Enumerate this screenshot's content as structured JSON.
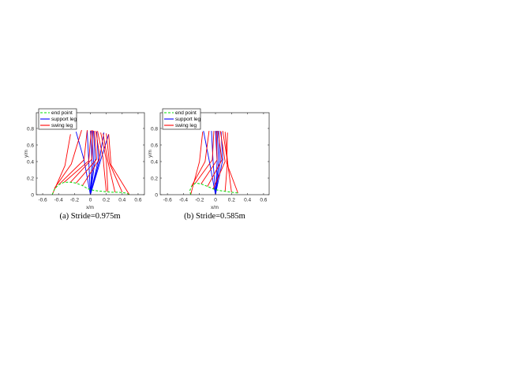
{
  "chart_data": [
    {
      "type": "line",
      "title": "",
      "caption": "(a) Stride=0.975m",
      "xlabel": "x/m",
      "ylabel": "y/m",
      "xlim": [
        -0.68,
        0.68
      ],
      "ylim": [
        0,
        0.99
      ],
      "xticks": [
        "-0.6",
        "-0.4",
        "-0.2",
        "0",
        "0.2",
        "0.4",
        "0.6"
      ],
      "xtick_values": [
        -0.6,
        -0.4,
        -0.2,
        0,
        0.2,
        0.4,
        0.6
      ],
      "yticks": [
        "0",
        "0.2",
        "0.4",
        "0.6",
        "0.8"
      ],
      "ytick_values": [
        0,
        0.2,
        0.4,
        0.6,
        0.8
      ],
      "grid": false,
      "legend_position": "upper-left",
      "legend": [
        {
          "label": "end point",
          "color": "#00dd00",
          "style": "dashed"
        },
        {
          "label": "support leg",
          "color": "#0000ff",
          "style": "solid"
        },
        {
          "label": "swing leg",
          "color": "#ff0000",
          "style": "solid"
        }
      ],
      "series": [
        {
          "name": "end point",
          "color": "#00dd00",
          "style": "dashed",
          "points": [
            [
              -0.48,
              0.0
            ],
            [
              -0.45,
              0.07
            ],
            [
              -0.4,
              0.12
            ],
            [
              -0.33,
              0.15
            ],
            [
              -0.25,
              0.15
            ],
            [
              -0.18,
              0.14
            ],
            [
              -0.1,
              0.11
            ],
            [
              -0.03,
              0.07
            ],
            [
              0.05,
              0.05
            ],
            [
              0.15,
              0.04
            ],
            [
              0.25,
              0.03
            ],
            [
              0.35,
              0.03
            ],
            [
              0.45,
              0.02
            ],
            [
              0.49,
              0.0
            ]
          ]
        },
        {
          "name": "support leg",
          "color": "#0000ff",
          "style": "solid",
          "legs": [
            [
              [
                -0.18,
                0.76
              ],
              [
                -0.08,
                0.42
              ],
              [
                0.0,
                0.0
              ]
            ],
            [
              [
                -0.04,
                0.77
              ],
              [
                -0.02,
                0.4
              ],
              [
                0.0,
                0.0
              ]
            ],
            [
              [
                0.0,
                0.77
              ],
              [
                0.02,
                0.4
              ],
              [
                0.0,
                0.0
              ]
            ],
            [
              [
                0.02,
                0.77
              ],
              [
                0.04,
                0.4
              ],
              [
                0.0,
                0.0
              ]
            ],
            [
              [
                0.04,
                0.77
              ],
              [
                0.06,
                0.42
              ],
              [
                0.0,
                0.0
              ]
            ],
            [
              [
                0.08,
                0.76
              ],
              [
                0.1,
                0.42
              ],
              [
                0.0,
                0.0
              ]
            ],
            [
              [
                0.17,
                0.75
              ],
              [
                0.11,
                0.4
              ],
              [
                0.0,
                0.0
              ]
            ],
            [
              [
                0.23,
                0.73
              ],
              [
                0.14,
                0.45
              ],
              [
                0.0,
                0.0
              ]
            ]
          ]
        },
        {
          "name": "swing leg",
          "color": "#ff0000",
          "style": "solid",
          "legs": [
            [
              [
                -0.25,
                0.73
              ],
              [
                -0.32,
                0.35
              ],
              [
                -0.48,
                0.0
              ]
            ],
            [
              [
                -0.11,
                0.78
              ],
              [
                -0.24,
                0.37
              ],
              [
                -0.45,
                0.08
              ]
            ],
            [
              [
                -0.04,
                0.78
              ],
              [
                -0.08,
                0.42
              ],
              [
                -0.4,
                0.12
              ]
            ],
            [
              [
                0.01,
                0.78
              ],
              [
                -0.02,
                0.41
              ],
              [
                -0.33,
                0.15
              ]
            ],
            [
              [
                0.03,
                0.78
              ],
              [
                0.02,
                0.43
              ],
              [
                -0.25,
                0.15
              ]
            ],
            [
              [
                0.05,
                0.77
              ],
              [
                0.08,
                0.43
              ],
              [
                -0.18,
                0.14
              ]
            ],
            [
              [
                0.07,
                0.77
              ],
              [
                0.12,
                0.44
              ],
              [
                -0.1,
                0.11
              ]
            ],
            [
              [
                0.09,
                0.77
              ],
              [
                0.16,
                0.44
              ],
              [
                0.2,
                0.04
              ]
            ],
            [
              [
                0.13,
                0.75
              ],
              [
                0.2,
                0.42
              ],
              [
                0.22,
                0.04
              ]
            ],
            [
              [
                0.16,
                0.74
              ],
              [
                0.22,
                0.4
              ],
              [
                0.31,
                0.03
              ]
            ],
            [
              [
                0.2,
                0.74
              ],
              [
                0.24,
                0.38
              ],
              [
                0.4,
                0.03
              ]
            ],
            [
              [
                0.23,
                0.73
              ],
              [
                0.26,
                0.36
              ],
              [
                0.49,
                0.0
              ]
            ]
          ]
        }
      ]
    },
    {
      "type": "line",
      "title": "",
      "caption": "(b) Stride=0.585m",
      "xlabel": "x/m",
      "ylabel": "y/m",
      "xlim": [
        -0.69,
        0.67
      ],
      "ylim": [
        0,
        0.99
      ],
      "xticks": [
        "-0.6",
        "-0.4",
        "-0.2",
        "0",
        "0.2",
        "0.4",
        "0.6"
      ],
      "xtick_values": [
        -0.6,
        -0.4,
        -0.2,
        0,
        0.2,
        0.4,
        0.6
      ],
      "yticks": [
        "0",
        "0.2",
        "0.4",
        "0.6",
        "0.8"
      ],
      "ytick_values": [
        0,
        0.2,
        0.4,
        0.6,
        0.8
      ],
      "grid": false,
      "legend_position": "upper-left",
      "legend": [
        {
          "label": "end point",
          "color": "#00dd00",
          "style": "dashed"
        },
        {
          "label": "support leg",
          "color": "#0000ff",
          "style": "solid"
        },
        {
          "label": "swing leg",
          "color": "#ff0000",
          "style": "solid"
        }
      ],
      "series": [
        {
          "name": "end point",
          "color": "#00dd00",
          "style": "dashed",
          "points": [
            [
              -0.31,
              0.0
            ],
            [
              -0.32,
              0.05
            ],
            [
              -0.3,
              0.1
            ],
            [
              -0.25,
              0.14
            ],
            [
              -0.18,
              0.13
            ],
            [
              -0.1,
              0.1
            ],
            [
              -0.03,
              0.07
            ],
            [
              0.05,
              0.05
            ],
            [
              0.12,
              0.04
            ],
            [
              0.2,
              0.03
            ],
            [
              0.28,
              0.02
            ]
          ]
        },
        {
          "name": "support leg",
          "color": "#0000ff",
          "style": "solid",
          "legs": [
            [
              [
                -0.15,
                0.77
              ],
              [
                -0.08,
                0.42
              ],
              [
                0.0,
                0.0
              ]
            ],
            [
              [
                -0.05,
                0.77
              ],
              [
                -0.03,
                0.4
              ],
              [
                0.0,
                0.0
              ]
            ],
            [
              [
                0.0,
                0.77
              ],
              [
                0.02,
                0.4
              ],
              [
                0.0,
                0.0
              ]
            ],
            [
              [
                0.02,
                0.77
              ],
              [
                0.04,
                0.41
              ],
              [
                0.0,
                0.0
              ]
            ],
            [
              [
                0.04,
                0.77
              ],
              [
                0.06,
                0.41
              ],
              [
                0.0,
                0.0
              ]
            ],
            [
              [
                0.07,
                0.76
              ],
              [
                0.09,
                0.42
              ],
              [
                0.0,
                0.0
              ]
            ]
          ]
        },
        {
          "name": "swing leg",
          "color": "#ff0000",
          "style": "solid",
          "legs": [
            [
              [
                -0.16,
                0.76
              ],
              [
                -0.2,
                0.4
              ],
              [
                -0.31,
                0.0
              ]
            ],
            [
              [
                -0.08,
                0.77
              ],
              [
                -0.13,
                0.4
              ],
              [
                -0.3,
                0.1
              ]
            ],
            [
              [
                -0.02,
                0.77
              ],
              [
                -0.04,
                0.42
              ],
              [
                -0.25,
                0.14
              ]
            ],
            [
              [
                0.01,
                0.77
              ],
              [
                0.02,
                0.42
              ],
              [
                -0.18,
                0.13
              ]
            ],
            [
              [
                0.03,
                0.77
              ],
              [
                0.08,
                0.42
              ],
              [
                -0.1,
                0.1
              ]
            ],
            [
              [
                0.06,
                0.77
              ],
              [
                0.12,
                0.4
              ],
              [
                -0.03,
                0.07
              ]
            ],
            [
              [
                0.09,
                0.77
              ],
              [
                0.15,
                0.4
              ],
              [
                0.12,
                0.04
              ]
            ],
            [
              [
                0.12,
                0.76
              ],
              [
                0.15,
                0.4
              ],
              [
                0.2,
                0.03
              ]
            ],
            [
              [
                0.15,
                0.75
              ],
              [
                0.14,
                0.38
              ],
              [
                0.28,
                0.02
              ]
            ]
          ]
        }
      ]
    }
  ],
  "panels": [
    {
      "caption": "(a) Stride=0.975m",
      "xlabel": "x/m",
      "ylabel": "y/m"
    },
    {
      "caption": "(b) Stride=0.585m",
      "xlabel": "x/m",
      "ylabel": "y/m"
    }
  ]
}
